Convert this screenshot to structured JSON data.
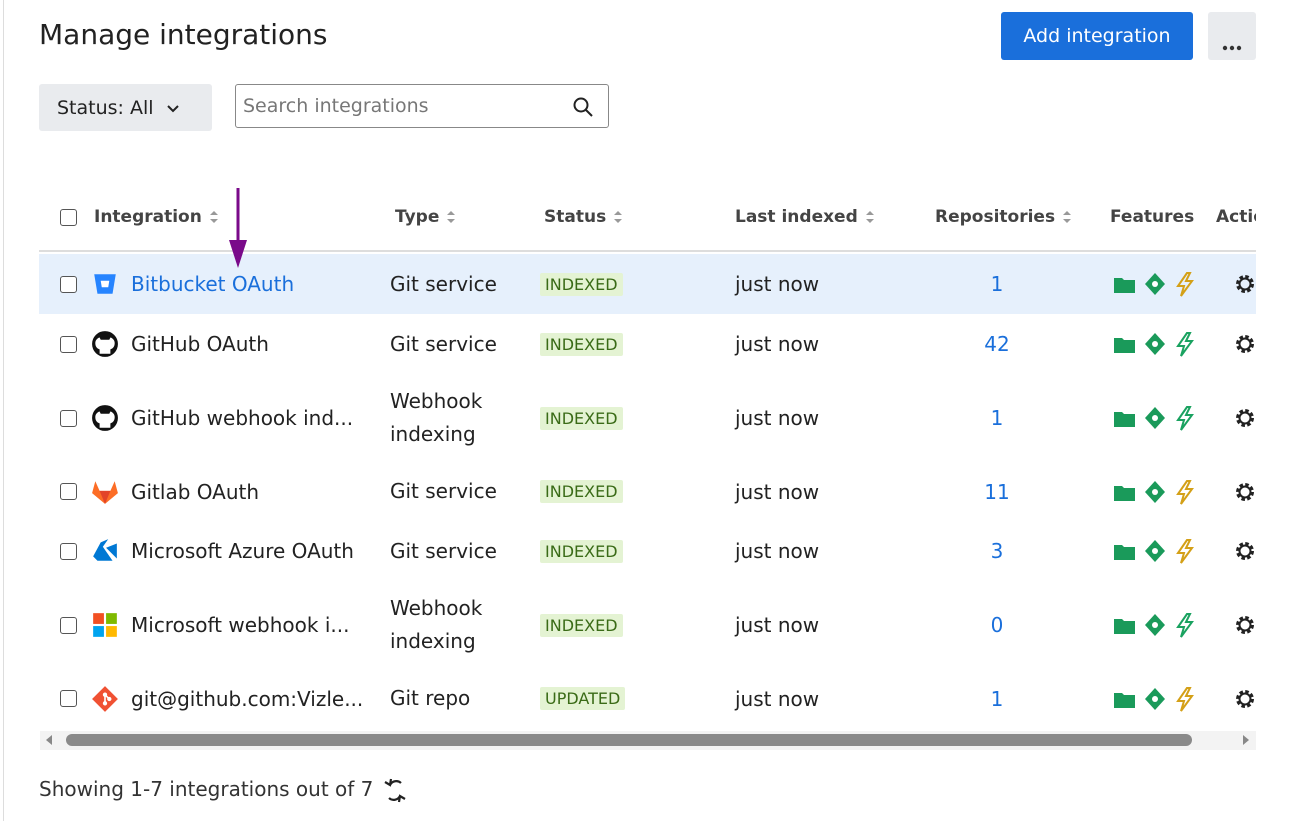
{
  "header": {
    "title": "Manage integrations",
    "add_button": "Add integration"
  },
  "filters": {
    "status": "Status: All",
    "search_placeholder": "Search integrations"
  },
  "table": {
    "columns": [
      "Integration",
      "Type",
      "Status",
      "Last indexed",
      "Repositories",
      "Features",
      "Actions"
    ],
    "rows": [
      {
        "integration": "Bitbucket OAuth",
        "type": "Git service",
        "status": "INDEXED",
        "last_indexed": "just now",
        "repositories": 1
      },
      {
        "integration": "GitHub OAuth",
        "type": "Git service",
        "status": "INDEXED",
        "last_indexed": "just now",
        "repositories": 42
      },
      {
        "integration": "GitHub webhook ind...",
        "type": "Webhook indexing",
        "status": "INDEXED",
        "last_indexed": "just now",
        "repositories": 1
      },
      {
        "integration": "Gitlab OAuth",
        "type": "Git service",
        "status": "INDEXED",
        "last_indexed": "just now",
        "repositories": 11
      },
      {
        "integration": "Microsoft Azure OAuth",
        "type": "Git service",
        "status": "INDEXED",
        "last_indexed": "just now",
        "repositories": 3
      },
      {
        "integration": "Microsoft webhook i...",
        "type": "Webhook indexing",
        "status": "INDEXED",
        "last_indexed": "just now",
        "repositories": 0
      },
      {
        "integration": "git@github.com:Vizle...",
        "type": "Git repo",
        "status": "UPDATED",
        "last_indexed": "just now",
        "repositories": 1
      }
    ]
  },
  "footer": {
    "summary": "Showing 1-7 integrations out of 7"
  }
}
